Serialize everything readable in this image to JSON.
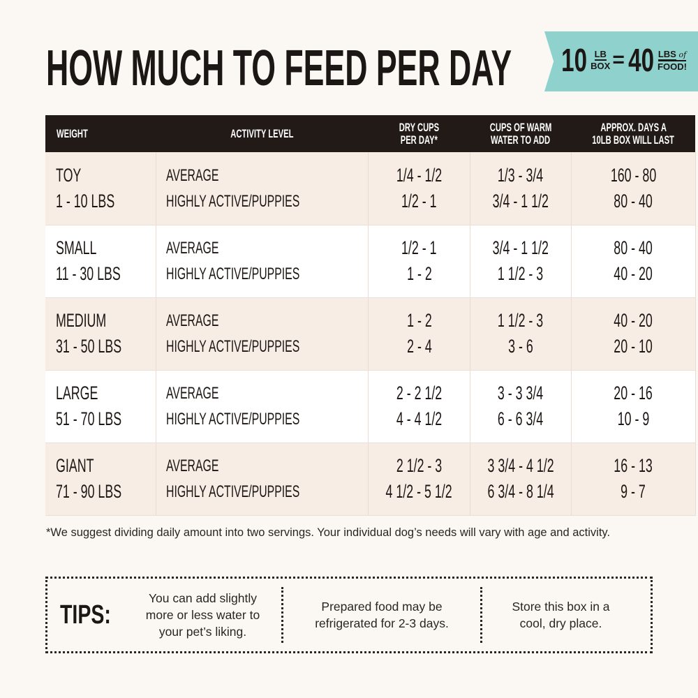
{
  "title": "HOW MUCH TO FEED PER DAY",
  "badge": {
    "left_num": "10",
    "left_top": "LB",
    "left_bottom": "BOX",
    "equals": "=",
    "right_num": "40",
    "right_top": "LBS",
    "right_of": "of",
    "right_bottom": "FOOD!",
    "color": "#8ed1cd"
  },
  "table": {
    "headers": [
      "WEIGHT",
      "ACTIVITY LEVEL",
      "DRY CUPS PER DAY*",
      "CUPS OF WARM WATER TO ADD",
      "APPROX. DAYS A 10LB BOX WILL LAST"
    ],
    "headers_lines": [
      [
        "WEIGHT"
      ],
      [
        "ACTIVITY LEVEL"
      ],
      [
        "DRY CUPS",
        "PER DAY*"
      ],
      [
        "CUPS OF WARM",
        "WATER TO ADD"
      ],
      [
        "APPROX. DAYS A",
        "10LB BOX WILL LAST"
      ]
    ],
    "rows": [
      {
        "size": "TOY",
        "range": "1 - 10 LBS",
        "activity": [
          "AVERAGE",
          "HIGHLY ACTIVE/PUPPIES"
        ],
        "dry": [
          "1/4 - 1/2",
          "1/2 - 1"
        ],
        "water": [
          "1/3 - 3/4",
          "3/4 - 1 1/2"
        ],
        "days": [
          "160 - 80",
          "80 - 40"
        ]
      },
      {
        "size": "SMALL",
        "range": "11 - 30 LBS",
        "activity": [
          "AVERAGE",
          "HIGHLY ACTIVE/PUPPIES"
        ],
        "dry": [
          "1/2 - 1",
          "1 - 2"
        ],
        "water": [
          "3/4 - 1 1/2",
          "1 1/2 - 3"
        ],
        "days": [
          "80 - 40",
          "40 - 20"
        ]
      },
      {
        "size": "MEDIUM",
        "range": "31 - 50 LBS",
        "activity": [
          "AVERAGE",
          "HIGHLY ACTIVE/PUPPIES"
        ],
        "dry": [
          "1 - 2",
          "2 - 4"
        ],
        "water": [
          "1 1/2 - 3",
          "3 - 6"
        ],
        "days": [
          "40 - 20",
          "20 - 10"
        ]
      },
      {
        "size": "LARGE",
        "range": "51 - 70 LBS",
        "activity": [
          "AVERAGE",
          "HIGHLY ACTIVE/PUPPIES"
        ],
        "dry": [
          "2 - 2 1/2",
          "4 - 4 1/2"
        ],
        "water": [
          "3 - 3 3/4",
          "6 - 6 3/4"
        ],
        "days": [
          "20 - 16",
          "10 - 9"
        ]
      },
      {
        "size": "GIANT",
        "range": "71 - 90 LBS",
        "activity": [
          "AVERAGE",
          "HIGHLY ACTIVE/PUPPIES"
        ],
        "dry": [
          "2 1/2 - 3",
          "4 1/2 - 5 1/2"
        ],
        "water": [
          "3 3/4 - 4 1/2",
          "6 3/4 - 8 1/4"
        ],
        "days": [
          "16 - 13",
          "9 - 7"
        ]
      }
    ]
  },
  "footnote": "*We suggest dividing daily amount into two servings. Your individual dog’s needs will vary with age and activity.",
  "tips": {
    "label": "TIPS:",
    "items": [
      "You can add slightly more or less water to your pet’s liking.",
      "Prepared food may be refrigerated for 2-3 days.",
      "Store this box in a cool, dry place."
    ]
  }
}
